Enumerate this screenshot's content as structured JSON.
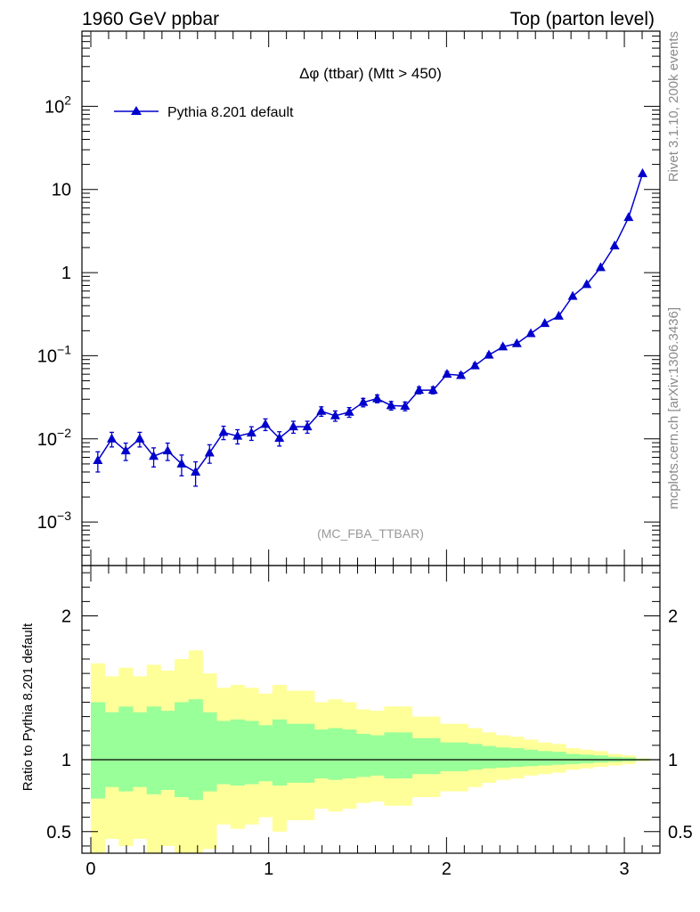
{
  "header": {
    "left": "1960 GeV ppbar",
    "right": "Top (parton level)"
  },
  "side_labels": {
    "rivet": "Rivet 3.1.10,  200k events",
    "mcplots": "mcplots.cern.ch [arXiv:1306.3436]"
  },
  "colors": {
    "series": "#0000cc",
    "band_outer": "#ffff99",
    "band_inner": "#99ff99"
  },
  "chart_data": [
    {
      "type": "line",
      "title": "Δφ (ttbar) (Mtt > 450)",
      "watermark": "(MC_FBA_TTBAR)",
      "yscale": "log",
      "xlim": [
        -0.05,
        3.2
      ],
      "ylim": [
        0.0003,
        800
      ],
      "ytick_labels": [
        "10^-3",
        "10^-2",
        "10^-1",
        "1",
        "10",
        "10^2"
      ],
      "legend": {
        "placement": "top-left",
        "entries": [
          "Pythia 8.201 default"
        ]
      },
      "series": [
        {
          "name": "Pythia 8.201 default",
          "x": [
            0.0393,
            0.1178,
            0.1963,
            0.2749,
            0.3534,
            0.432,
            0.5105,
            0.589,
            0.6676,
            0.7461,
            0.8247,
            0.9032,
            0.9817,
            1.0603,
            1.1388,
            1.2174,
            1.2959,
            1.3744,
            1.453,
            1.5315,
            1.6101,
            1.6886,
            1.7671,
            1.8457,
            1.9242,
            2.0028,
            2.0813,
            2.1598,
            2.2384,
            2.3169,
            2.3955,
            2.474,
            2.5525,
            2.6311,
            2.7096,
            2.7882,
            2.8667,
            2.9452,
            3.0238,
            3.1023
          ],
          "y": [
            0.0055,
            0.01,
            0.0072,
            0.01,
            0.0062,
            0.0072,
            0.005,
            0.004,
            0.0068,
            0.012,
            0.0108,
            0.0118,
            0.015,
            0.0102,
            0.014,
            0.014,
            0.0215,
            0.019,
            0.021,
            0.0275,
            0.0305,
            0.0252,
            0.0248,
            0.0385,
            0.0385,
            0.06,
            0.058,
            0.076,
            0.102,
            0.128,
            0.14,
            0.185,
            0.245,
            0.3,
            0.52,
            0.72,
            1.15,
            2.1,
            4.6,
            15.5
          ],
          "err": [
            0.0015,
            0.002,
            0.0017,
            0.002,
            0.0016,
            0.0017,
            0.0014,
            0.0013,
            0.0017,
            0.0022,
            0.0021,
            0.0022,
            0.0024,
            0.002,
            0.0023,
            0.0023,
            0.0028,
            0.0027,
            0.0028,
            0.0032,
            0.0033,
            0.003,
            0.003,
            0.0037,
            0.0037,
            0.0046,
            0.0045,
            0.0052,
            0.006,
            0.0068,
            0.007,
            0.008,
            0.009,
            0.01,
            0.013,
            0.015,
            0.019,
            0.026,
            0.038,
            0.07
          ]
        }
      ]
    },
    {
      "type": "area",
      "ylabel": "Ratio to Pythia 8.201 default",
      "xlim": [
        -0.05,
        3.2
      ],
      "ylim": [
        0.35,
        2.35
      ],
      "xtick_labels": [
        "0",
        "1",
        "2",
        "3"
      ],
      "ytick_labels": [
        "0.5",
        "1",
        "2"
      ],
      "reference_line": 1,
      "bins": [
        0.0,
        0.0785,
        0.1571,
        0.2356,
        0.3142,
        0.3927,
        0.4712,
        0.5498,
        0.6283,
        0.7069,
        0.7854,
        0.8639,
        0.9425,
        1.021,
        1.0996,
        1.1781,
        1.2566,
        1.3352,
        1.4137,
        1.4923,
        1.5708,
        1.6493,
        1.7279,
        1.8064,
        1.885,
        1.9635,
        2.042,
        2.1206,
        2.1991,
        2.2777,
        2.3562,
        2.4347,
        2.5133,
        2.5918,
        2.6704,
        2.7489,
        2.8274,
        2.906,
        2.9845,
        3.0631,
        3.1416
      ],
      "bands": [
        {
          "name": "outer",
          "upper": [
            1.67,
            1.58,
            1.64,
            1.58,
            1.66,
            1.62,
            1.7,
            1.76,
            1.6,
            1.5,
            1.52,
            1.5,
            1.46,
            1.52,
            1.48,
            1.48,
            1.4,
            1.42,
            1.4,
            1.35,
            1.34,
            1.37,
            1.37,
            1.3,
            1.3,
            1.25,
            1.25,
            1.22,
            1.19,
            1.17,
            1.16,
            1.14,
            1.12,
            1.11,
            1.08,
            1.07,
            1.06,
            1.04,
            1.03,
            1.01
          ],
          "lower": [
            0.25,
            0.45,
            0.4,
            0.45,
            0.3,
            0.4,
            0.28,
            0.22,
            0.38,
            0.55,
            0.52,
            0.55,
            0.6,
            0.5,
            0.58,
            0.58,
            0.66,
            0.64,
            0.66,
            0.7,
            0.71,
            0.68,
            0.68,
            0.74,
            0.74,
            0.78,
            0.78,
            0.81,
            0.84,
            0.86,
            0.87,
            0.89,
            0.9,
            0.91,
            0.93,
            0.94,
            0.95,
            0.96,
            0.97,
            0.99
          ]
        },
        {
          "name": "inner",
          "upper": [
            1.4,
            1.33,
            1.37,
            1.33,
            1.37,
            1.34,
            1.4,
            1.42,
            1.33,
            1.27,
            1.28,
            1.27,
            1.24,
            1.28,
            1.25,
            1.25,
            1.21,
            1.22,
            1.21,
            1.18,
            1.17,
            1.19,
            1.19,
            1.15,
            1.15,
            1.12,
            1.12,
            1.11,
            1.095,
            1.085,
            1.08,
            1.07,
            1.06,
            1.055,
            1.04,
            1.035,
            1.03,
            1.02,
            1.015,
            1.005
          ],
          "lower": [
            0.73,
            0.81,
            0.78,
            0.81,
            0.76,
            0.79,
            0.74,
            0.72,
            0.78,
            0.83,
            0.82,
            0.83,
            0.85,
            0.82,
            0.84,
            0.84,
            0.87,
            0.86,
            0.87,
            0.88,
            0.89,
            0.87,
            0.87,
            0.9,
            0.9,
            0.92,
            0.92,
            0.93,
            0.94,
            0.945,
            0.95,
            0.955,
            0.96,
            0.965,
            0.97,
            0.975,
            0.98,
            0.985,
            0.99,
            0.995
          ]
        }
      ]
    }
  ]
}
